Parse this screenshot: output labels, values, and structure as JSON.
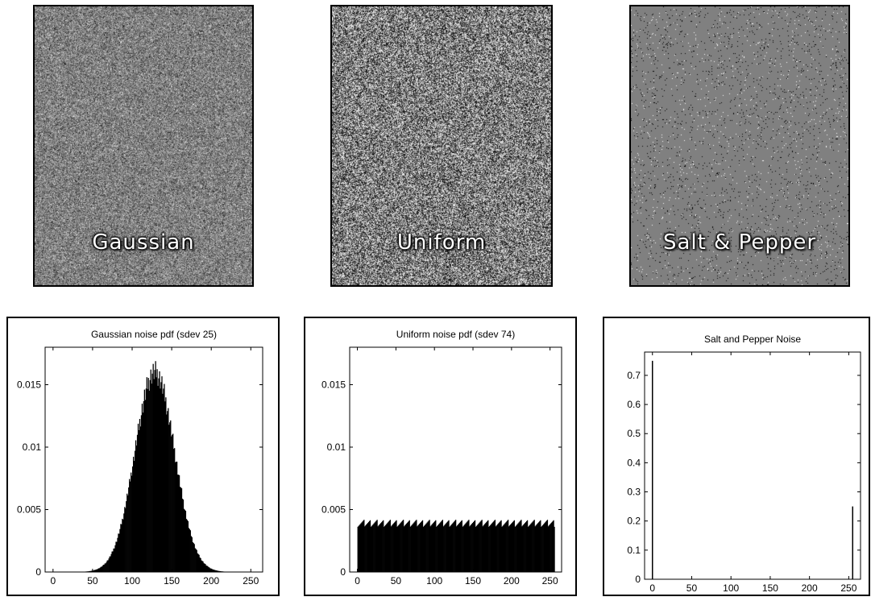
{
  "noise_images": [
    {
      "label": "Gaussian",
      "mode": "gaussian"
    },
    {
      "label": "Uniform",
      "mode": "uniform"
    },
    {
      "label": "Salt & Pepper",
      "mode": "saltpepper"
    }
  ],
  "chart_data": [
    {
      "type": "bar",
      "title": "Gaussian noise pdf (sdev 25)",
      "distribution": {
        "kind": "gaussian",
        "mean": 128,
        "sdev": 25
      },
      "x": {
        "lim": [
          -10,
          265
        ],
        "ticks": [
          0,
          50,
          100,
          150,
          200,
          250
        ]
      },
      "y": {
        "lim": [
          0,
          0.018
        ],
        "ticks": [
          0,
          0.005,
          0.01,
          0.015
        ],
        "tick_labels": [
          "0",
          "0.005",
          "0.01",
          "0.015"
        ]
      },
      "peak_value": 0.016,
      "xlabel": "",
      "ylabel": ""
    },
    {
      "type": "bar",
      "title": "Uniform noise pdf (sdev 74)",
      "distribution": {
        "kind": "uniform",
        "range": [
          0,
          255
        ],
        "sdev": 74
      },
      "x": {
        "lim": [
          -10,
          265
        ],
        "ticks": [
          0,
          50,
          100,
          150,
          200,
          250
        ]
      },
      "y": {
        "lim": [
          0,
          0.018
        ],
        "ticks": [
          0,
          0.005,
          0.01,
          0.015
        ],
        "tick_labels": [
          "0",
          "0.005",
          "0.01",
          "0.015"
        ]
      },
      "level_value": 0.0039,
      "xlabel": "",
      "ylabel": ""
    },
    {
      "type": "bar",
      "title": "Salt and Pepper Noise",
      "x": {
        "lim": [
          -10,
          265
        ],
        "ticks": [
          0,
          50,
          100,
          150,
          200,
          250
        ]
      },
      "y": {
        "lim": [
          0,
          0.78
        ],
        "ticks": [
          0,
          0.1,
          0.2,
          0.3,
          0.4,
          0.5,
          0.6,
          0.7
        ],
        "tick_labels": [
          "0",
          "0.1",
          "0.2",
          "0.3",
          "0.4",
          "0.5",
          "0.6",
          "0.7"
        ]
      },
      "spikes": [
        {
          "x": 0,
          "value": 0.75
        },
        {
          "x": 255,
          "value": 0.25
        }
      ],
      "xlabel": "",
      "ylabel": ""
    }
  ]
}
